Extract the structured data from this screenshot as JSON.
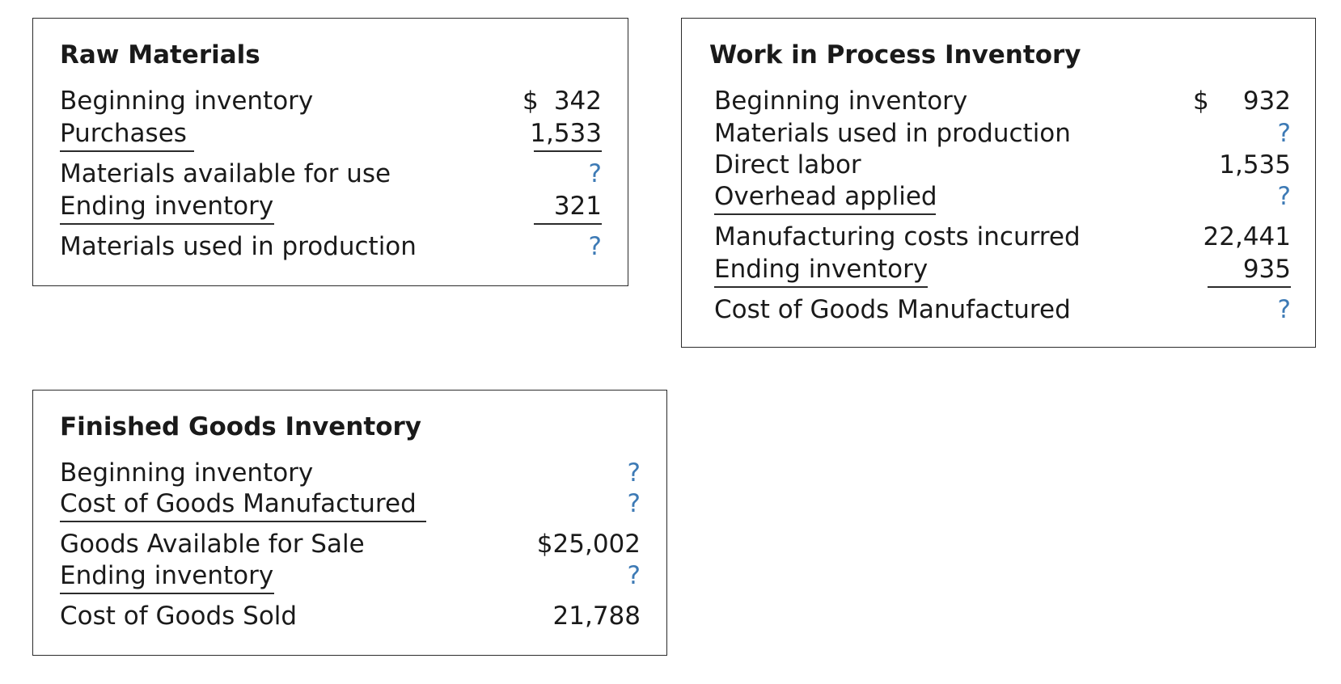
{
  "colors": {
    "unknown": "#3d7ab5",
    "text": "#1a1a1a",
    "border": "#2b2b2b"
  },
  "raw_materials": {
    "title": "Raw Materials",
    "rows": [
      {
        "label": "Beginning inventory",
        "currency": "$",
        "value": "342"
      },
      {
        "label": "Purchases",
        "value": "1,533"
      },
      {
        "label": "Materials available for use",
        "value": "?"
      },
      {
        "label": "Ending inventory",
        "value": "321"
      },
      {
        "label": "Materials used in production",
        "value": "?"
      }
    ]
  },
  "work_in_process": {
    "title": "Work in Process Inventory",
    "rows": [
      {
        "label": "Beginning inventory",
        "currency": "$",
        "value": "932"
      },
      {
        "label": "Materials used in production",
        "value": "?"
      },
      {
        "label": "Direct labor",
        "value": "1,535"
      },
      {
        "label": "Overhead applied",
        "value": "?"
      },
      {
        "label": "Manufacturing costs incurred",
        "value": "22,441"
      },
      {
        "label": "Ending inventory",
        "value": "935"
      },
      {
        "label": "Cost of Goods Manufactured",
        "value": "?"
      }
    ]
  },
  "finished_goods": {
    "title": "Finished Goods Inventory",
    "rows": [
      {
        "label": "Beginning inventory",
        "value": "?"
      },
      {
        "label": "Cost of Goods Manufactured",
        "value": "?"
      },
      {
        "label": "Goods Available for Sale",
        "value": "$25,002"
      },
      {
        "label": "Ending inventory",
        "value": "?"
      },
      {
        "label": "Cost of Goods Sold",
        "value": "21,788"
      }
    ]
  }
}
